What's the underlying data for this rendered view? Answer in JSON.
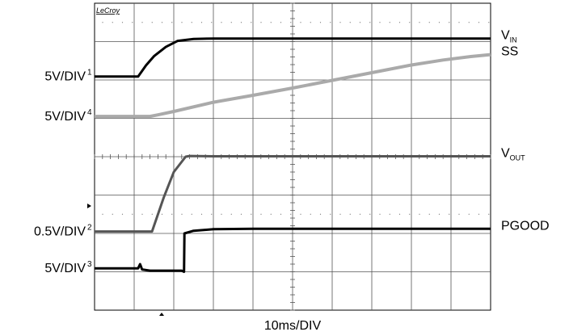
{
  "chart_data": {
    "type": "line",
    "brand": "LeCroy",
    "time_scale_label": "10ms/DIV",
    "grid": true,
    "grid_divisions": {
      "x": 10,
      "y": 8
    },
    "x_unit": "div",
    "y_unit": "div",
    "xlim": [
      0,
      10
    ],
    "ylim": [
      0,
      8
    ],
    "scale_labels": [
      {
        "text": "5V/DIV",
        "marker": "1",
        "baseline_div": 6.09
      },
      {
        "text": "5V/DIV",
        "marker": "4",
        "baseline_div": 5.05
      },
      {
        "text": "0.5V/DIV",
        "marker": "2",
        "baseline_div": 2.05
      },
      {
        "text": "5V/DIV",
        "marker": "3",
        "baseline_div": 1.09
      }
    ],
    "series": [
      {
        "name": "V",
        "sub": "IN",
        "color": "#000000",
        "x": [
          0,
          1.1,
          1.3,
          1.5,
          1.8,
          2.1,
          2.5,
          3,
          4,
          5,
          6,
          7,
          8,
          9,
          10
        ],
        "y": [
          6.09,
          6.09,
          6.38,
          6.62,
          6.86,
          7.02,
          7.07,
          7.08,
          7.08,
          7.08,
          7.08,
          7.08,
          7.08,
          7.08,
          7.08
        ]
      },
      {
        "name": "SS",
        "sub": "",
        "color": "#aaaaaa",
        "x": [
          0,
          1.4,
          1.6,
          2,
          3,
          4,
          5,
          6,
          7,
          8,
          8.8,
          9.5,
          10
        ],
        "y": [
          5.05,
          5.05,
          5.09,
          5.18,
          5.42,
          5.6,
          5.79,
          5.99,
          6.19,
          6.39,
          6.52,
          6.61,
          6.66
        ]
      },
      {
        "name": "V",
        "sub": "OUT",
        "color": "#555555",
        "x": [
          0,
          1.45,
          1.75,
          2.0,
          2.3,
          2.4,
          3,
          4,
          5,
          6,
          7,
          8,
          9,
          10
        ],
        "y": [
          2.05,
          2.05,
          2.95,
          3.6,
          4.0,
          4.02,
          4.01,
          4.01,
          4.01,
          4.01,
          4.01,
          4.01,
          4.01,
          4.01
        ]
      },
      {
        "name": "PGOOD",
        "sub": "",
        "color": "#000000",
        "x": [
          0,
          1.1,
          1.15,
          1.2,
          1.4,
          2.2,
          2.26,
          2.27,
          2.5,
          3,
          4,
          5,
          6,
          7,
          8,
          9,
          10
        ],
        "y": [
          1.09,
          1.09,
          1.2,
          1.06,
          1.03,
          1.03,
          1.0,
          2.0,
          2.07,
          2.11,
          2.12,
          2.12,
          2.12,
          2.12,
          2.12,
          2.12,
          2.12
        ]
      }
    ]
  }
}
